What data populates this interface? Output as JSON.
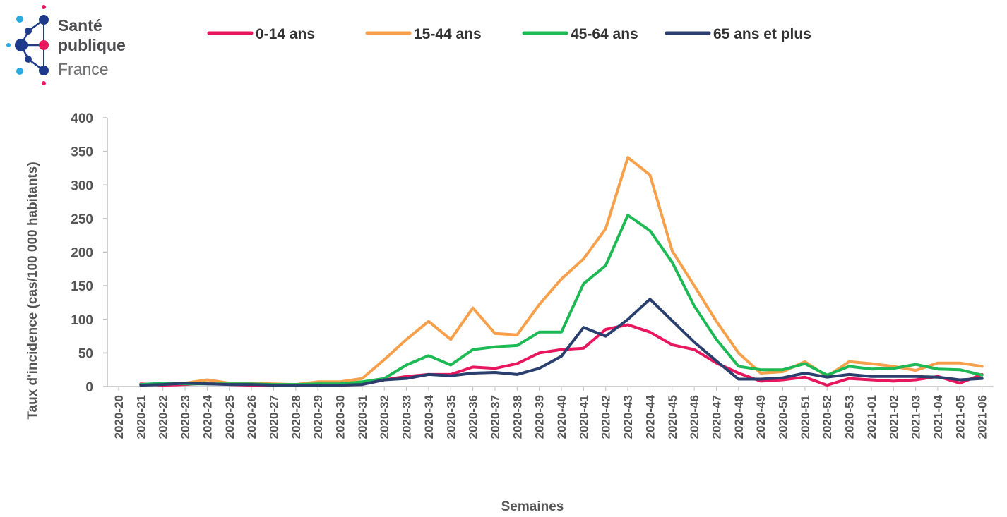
{
  "logo": {
    "line1": "Santé",
    "line2": "publique",
    "line3": "France"
  },
  "colors": {
    "series_0_14": "#e8175d",
    "series_15_44": "#f7a04b",
    "series_45_64": "#1db954",
    "series_65_plus": "#2b3f6e",
    "logo_pink": "#e6175c",
    "logo_navy": "#1e3a8a",
    "logo_light_blue": "#29aae1"
  },
  "chart_data": {
    "type": "line",
    "title": "",
    "xlabel": "Semaines",
    "ylabel": "Taux d'incidence  (cas/100 000 habitants)",
    "ylim": [
      0,
      400
    ],
    "yticks": [
      0,
      50,
      100,
      150,
      200,
      250,
      300,
      350,
      400
    ],
    "grid": false,
    "legend_position": "top",
    "categories": [
      "2020-20",
      "2020-21",
      "2020-22",
      "2020-23",
      "2020-24",
      "2020-25",
      "2020-26",
      "2020-27",
      "2020-28",
      "2020-29",
      "2020-30",
      "2020-31",
      "2020-32",
      "2020-33",
      "2020-34",
      "2020-35",
      "2020-36",
      "2020-37",
      "2020-38",
      "2020-39",
      "2020-40",
      "2020-41",
      "2020-42",
      "2020-43",
      "2020-44",
      "2020-45",
      "2020-46",
      "2020-47",
      "2020-48",
      "2020-49",
      "2020-50",
      "2020-51",
      "2020-52",
      "2020-53",
      "2021-01",
      "2021-02",
      "2021-03",
      "2021-04",
      "2021-05",
      "2021-06"
    ],
    "series": [
      {
        "name": "0-14 ans",
        "color": "#e8175d",
        "values": [
          null,
          4,
          2,
          3,
          5,
          3,
          2,
          2,
          2,
          2,
          2,
          3,
          10,
          15,
          18,
          18,
          29,
          27,
          34,
          50,
          55,
          57,
          85,
          92,
          81,
          62,
          55,
          35,
          20,
          8,
          10,
          14,
          2,
          12,
          10,
          8,
          10,
          15,
          5,
          18
        ]
      },
      {
        "name": "15-44 ans",
        "color": "#f7a04b",
        "values": [
          null,
          3,
          3,
          5,
          10,
          5,
          5,
          4,
          3,
          7,
          7,
          12,
          40,
          70,
          97,
          70,
          117,
          79,
          77,
          122,
          160,
          190,
          235,
          341,
          315,
          202,
          150,
          97,
          50,
          20,
          22,
          37,
          15,
          37,
          34,
          30,
          24,
          35,
          35,
          30
        ]
      },
      {
        "name": "45-64 ans",
        "color": "#1db954",
        "values": [
          null,
          3,
          5,
          4,
          4,
          4,
          4,
          3,
          3,
          4,
          4,
          7,
          12,
          32,
          46,
          32,
          55,
          59,
          61,
          81,
          81,
          153,
          180,
          255,
          232,
          185,
          120,
          70,
          30,
          25,
          25,
          34,
          17,
          30,
          26,
          27,
          33,
          26,
          25,
          17
        ]
      },
      {
        "name": "65 ans et plus",
        "color": "#2b3f6e",
        "values": [
          null,
          2,
          3,
          5,
          4,
          3,
          3,
          2,
          2,
          2,
          2,
          3,
          10,
          12,
          18,
          16,
          20,
          21,
          18,
          27,
          45,
          88,
          75,
          100,
          130,
          98,
          66,
          38,
          11,
          11,
          13,
          20,
          14,
          18,
          15,
          15,
          15,
          14,
          10,
          12
        ]
      }
    ]
  }
}
